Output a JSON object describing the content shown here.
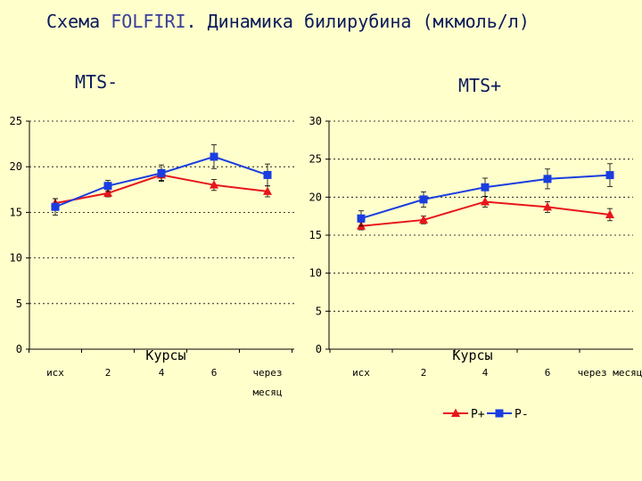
{
  "title": {
    "part1": "Схема ",
    "part2": "FOLFIRI",
    "part3": ". Динамика билирубина (мкмоль/л)"
  },
  "colors": {
    "red": "#E8151B",
    "blue": "#1A3DE0",
    "background": "#FFFFCC"
  },
  "legend": {
    "items": [
      {
        "label": "Р+",
        "marker": "triangle",
        "color": "#E8151B"
      },
      {
        "label": "Р-",
        "marker": "square",
        "color": "#1A3DE0"
      }
    ]
  },
  "chart_data": [
    {
      "type": "line",
      "title": "MTS-",
      "xlabel": "Курсы",
      "ylabel": "",
      "categories": [
        "исх",
        "2",
        "4",
        "6",
        "через месяц"
      ],
      "yticks": [
        "0",
        "5",
        "10",
        "15",
        "20",
        "25"
      ],
      "ylim": [
        0,
        25
      ],
      "grid": true,
      "series": [
        {
          "name": "Р+",
          "color": "#E8151B",
          "marker": "triangle",
          "values": [
            16.0,
            17.1,
            19.1,
            18.0,
            17.3
          ],
          "error": [
            0.5,
            0.4,
            0.6,
            0.6,
            0.6
          ]
        },
        {
          "name": "Р-",
          "color": "#1A3DE0",
          "marker": "square",
          "values": [
            15.6,
            17.9,
            19.3,
            21.1,
            19.1
          ],
          "error": [
            0.9,
            0.6,
            0.9,
            1.3,
            1.2
          ]
        }
      ]
    },
    {
      "type": "line",
      "title": "MTS+",
      "xlabel": "Курсы",
      "ylabel": "",
      "categories": [
        "исх",
        "2",
        "4",
        "6",
        "через месяц"
      ],
      "yticks": [
        "0",
        "5",
        "10",
        "15",
        "20",
        "25",
        "30"
      ],
      "ylim": [
        0,
        30
      ],
      "grid": true,
      "series": [
        {
          "name": "Р+",
          "color": "#E8151B",
          "marker": "triangle",
          "values": [
            16.2,
            17.0,
            19.4,
            18.7,
            17.7
          ],
          "error": [
            0.5,
            0.5,
            0.7,
            0.7,
            0.8
          ]
        },
        {
          "name": "Р-",
          "color": "#1A3DE0",
          "marker": "square",
          "values": [
            17.2,
            19.7,
            21.3,
            22.4,
            22.9
          ],
          "error": [
            1.0,
            1.0,
            1.2,
            1.3,
            1.5
          ]
        }
      ]
    }
  ]
}
